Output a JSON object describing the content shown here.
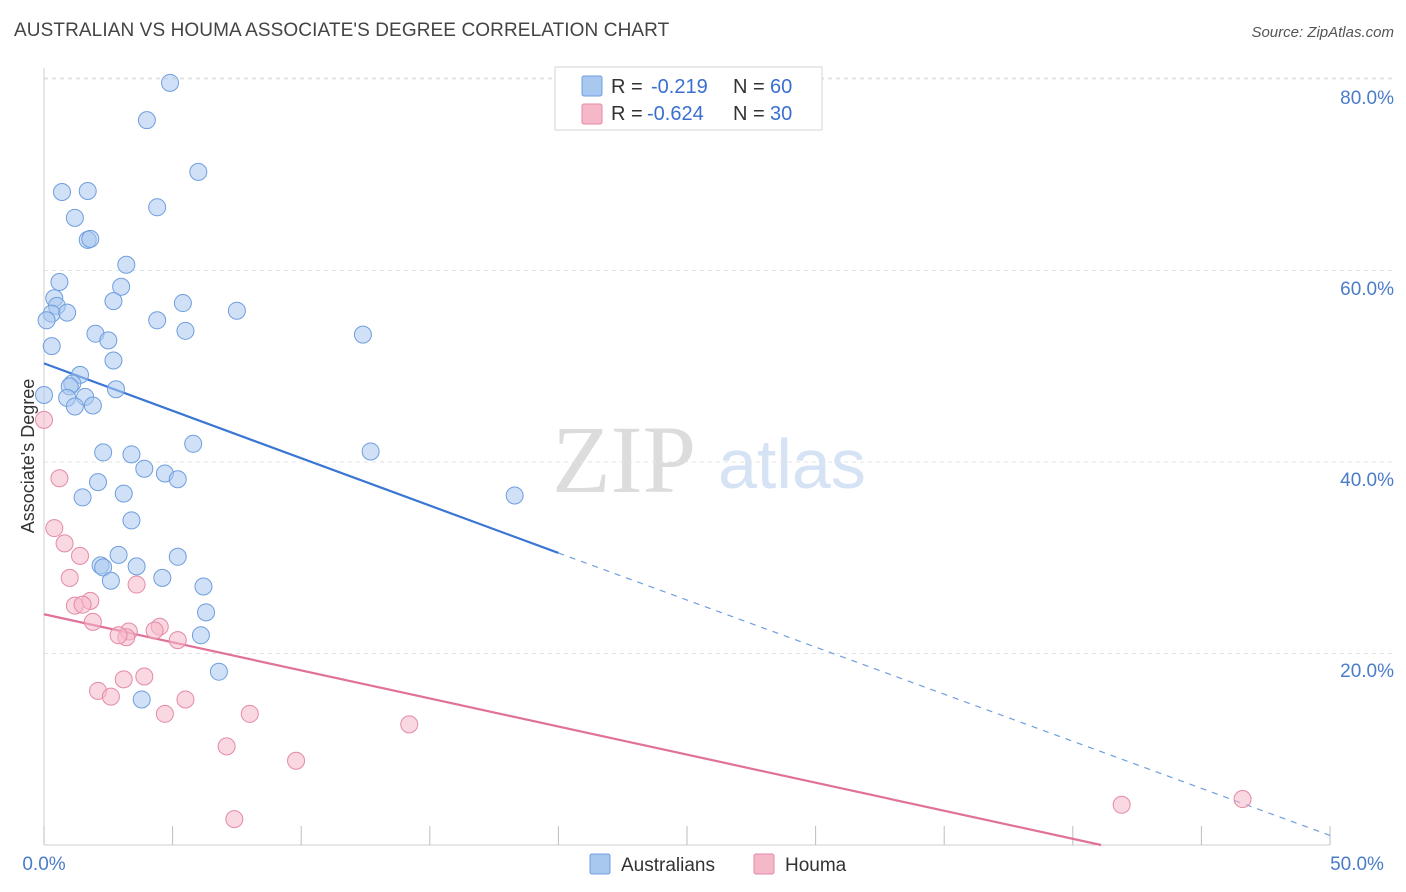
{
  "header": {
    "title": "AUSTRALIAN VS HOUMA ASSOCIATE'S DEGREE CORRELATION CHART",
    "source": "Source: ZipAtlas.com"
  },
  "watermark": {
    "zip": "ZIP",
    "atlas": "atlas"
  },
  "legend": {
    "rows": [
      {
        "r_label": "R =",
        "r_value": "-0.219",
        "n_label": "N =",
        "n_value": "60",
        "color": "#a9c8f0"
      },
      {
        "r_label": "R =",
        "r_value": "-0.624",
        "n_label": "N =",
        "n_value": "30",
        "color": "#f5b8c9"
      }
    ]
  },
  "bottom_legend": {
    "items": [
      "Australians",
      "Houma"
    ]
  },
  "chart_data": {
    "type": "scatter",
    "title": "AUSTRALIAN VS HOUMA ASSOCIATE'S DEGREE CORRELATION CHART",
    "xlabel": "",
    "ylabel": "Associate's Degree",
    "xlim": [
      0,
      50
    ],
    "ylim": [
      0,
      80
    ],
    "x_tick_labels": [
      "0.0%",
      "50.0%"
    ],
    "y_ticks": [
      20,
      40,
      60,
      80
    ],
    "y_tick_labels": [
      "20.0%",
      "40.0%",
      "60.0%",
      "80.0%"
    ],
    "grid": true,
    "legend_position": "top-center",
    "series": [
      {
        "name": "Australians",
        "color": "#a9c8f0",
        "stroke": "#6f9ede",
        "r": -0.219,
        "n": 60,
        "trend": {
          "x_start": 0,
          "y_start": 50.3,
          "x_solid_end": 20,
          "y_solid_end": 30.5,
          "x_end": 50,
          "y_end": 1.0
        },
        "points": [
          [
            4.9,
            79.6
          ],
          [
            4.0,
            75.7
          ],
          [
            6.0,
            70.3
          ],
          [
            1.7,
            68.3
          ],
          [
            0.7,
            68.2
          ],
          [
            4.4,
            66.6
          ],
          [
            1.2,
            65.5
          ],
          [
            1.7,
            63.2
          ],
          [
            1.8,
            63.3
          ],
          [
            3.2,
            60.6
          ],
          [
            0.6,
            58.8
          ],
          [
            3.0,
            58.3
          ],
          [
            0.4,
            57.1
          ],
          [
            2.7,
            56.8
          ],
          [
            5.4,
            56.6
          ],
          [
            0.5,
            56.3
          ],
          [
            7.5,
            55.8
          ],
          [
            0.3,
            55.5
          ],
          [
            0.9,
            55.6
          ],
          [
            0.1,
            54.8
          ],
          [
            4.4,
            54.8
          ],
          [
            5.5,
            53.7
          ],
          [
            2.0,
            53.4
          ],
          [
            12.4,
            53.3
          ],
          [
            2.5,
            52.7
          ],
          [
            0.3,
            52.1
          ],
          [
            2.7,
            50.6
          ],
          [
            1.4,
            49.1
          ],
          [
            1.1,
            48.2
          ],
          [
            1.0,
            47.9
          ],
          [
            2.8,
            47.6
          ],
          [
            0.0,
            47.0
          ],
          [
            1.6,
            46.8
          ],
          [
            0.9,
            46.7
          ],
          [
            1.2,
            45.8
          ],
          [
            1.9,
            45.9
          ],
          [
            5.8,
            41.9
          ],
          [
            12.7,
            41.1
          ],
          [
            3.4,
            40.8
          ],
          [
            2.3,
            41.0
          ],
          [
            3.9,
            39.3
          ],
          [
            4.7,
            38.8
          ],
          [
            5.2,
            38.2
          ],
          [
            2.1,
            37.9
          ],
          [
            3.1,
            36.7
          ],
          [
            18.3,
            36.5
          ],
          [
            1.5,
            36.3
          ],
          [
            3.4,
            33.9
          ],
          [
            2.9,
            30.3
          ],
          [
            5.2,
            30.1
          ],
          [
            2.2,
            29.2
          ],
          [
            3.6,
            29.1
          ],
          [
            2.3,
            29.0
          ],
          [
            4.6,
            27.9
          ],
          [
            2.6,
            27.6
          ],
          [
            6.2,
            27.0
          ],
          [
            6.3,
            24.3
          ],
          [
            6.1,
            21.9
          ],
          [
            6.8,
            18.1
          ],
          [
            3.8,
            15.2
          ]
        ]
      },
      {
        "name": "Houma",
        "color": "#f5b8c9",
        "stroke": "#e48aa6",
        "r": -0.624,
        "n": 30,
        "trend": {
          "x_start": 0,
          "y_start": 24.1,
          "x_end": 41.1,
          "y_end": 0.0
        },
        "points": [
          [
            0.0,
            44.4
          ],
          [
            0.6,
            38.3
          ],
          [
            0.4,
            33.1
          ],
          [
            0.8,
            31.5
          ],
          [
            1.4,
            30.2
          ],
          [
            1.0,
            27.9
          ],
          [
            3.6,
            27.2
          ],
          [
            1.8,
            25.5
          ],
          [
            1.2,
            25.0
          ],
          [
            1.5,
            25.1
          ],
          [
            1.9,
            23.3
          ],
          [
            4.5,
            22.8
          ],
          [
            3.3,
            22.3
          ],
          [
            3.2,
            21.7
          ],
          [
            2.9,
            21.9
          ],
          [
            4.3,
            22.4
          ],
          [
            5.2,
            21.4
          ],
          [
            3.9,
            17.6
          ],
          [
            3.1,
            17.3
          ],
          [
            2.1,
            16.1
          ],
          [
            2.6,
            15.5
          ],
          [
            5.5,
            15.2
          ],
          [
            4.7,
            13.7
          ],
          [
            8.0,
            13.7
          ],
          [
            14.2,
            12.6
          ],
          [
            7.1,
            10.3
          ],
          [
            9.8,
            8.8
          ],
          [
            41.9,
            4.2
          ],
          [
            46.6,
            4.8
          ],
          [
            7.4,
            2.7
          ]
        ]
      }
    ]
  }
}
